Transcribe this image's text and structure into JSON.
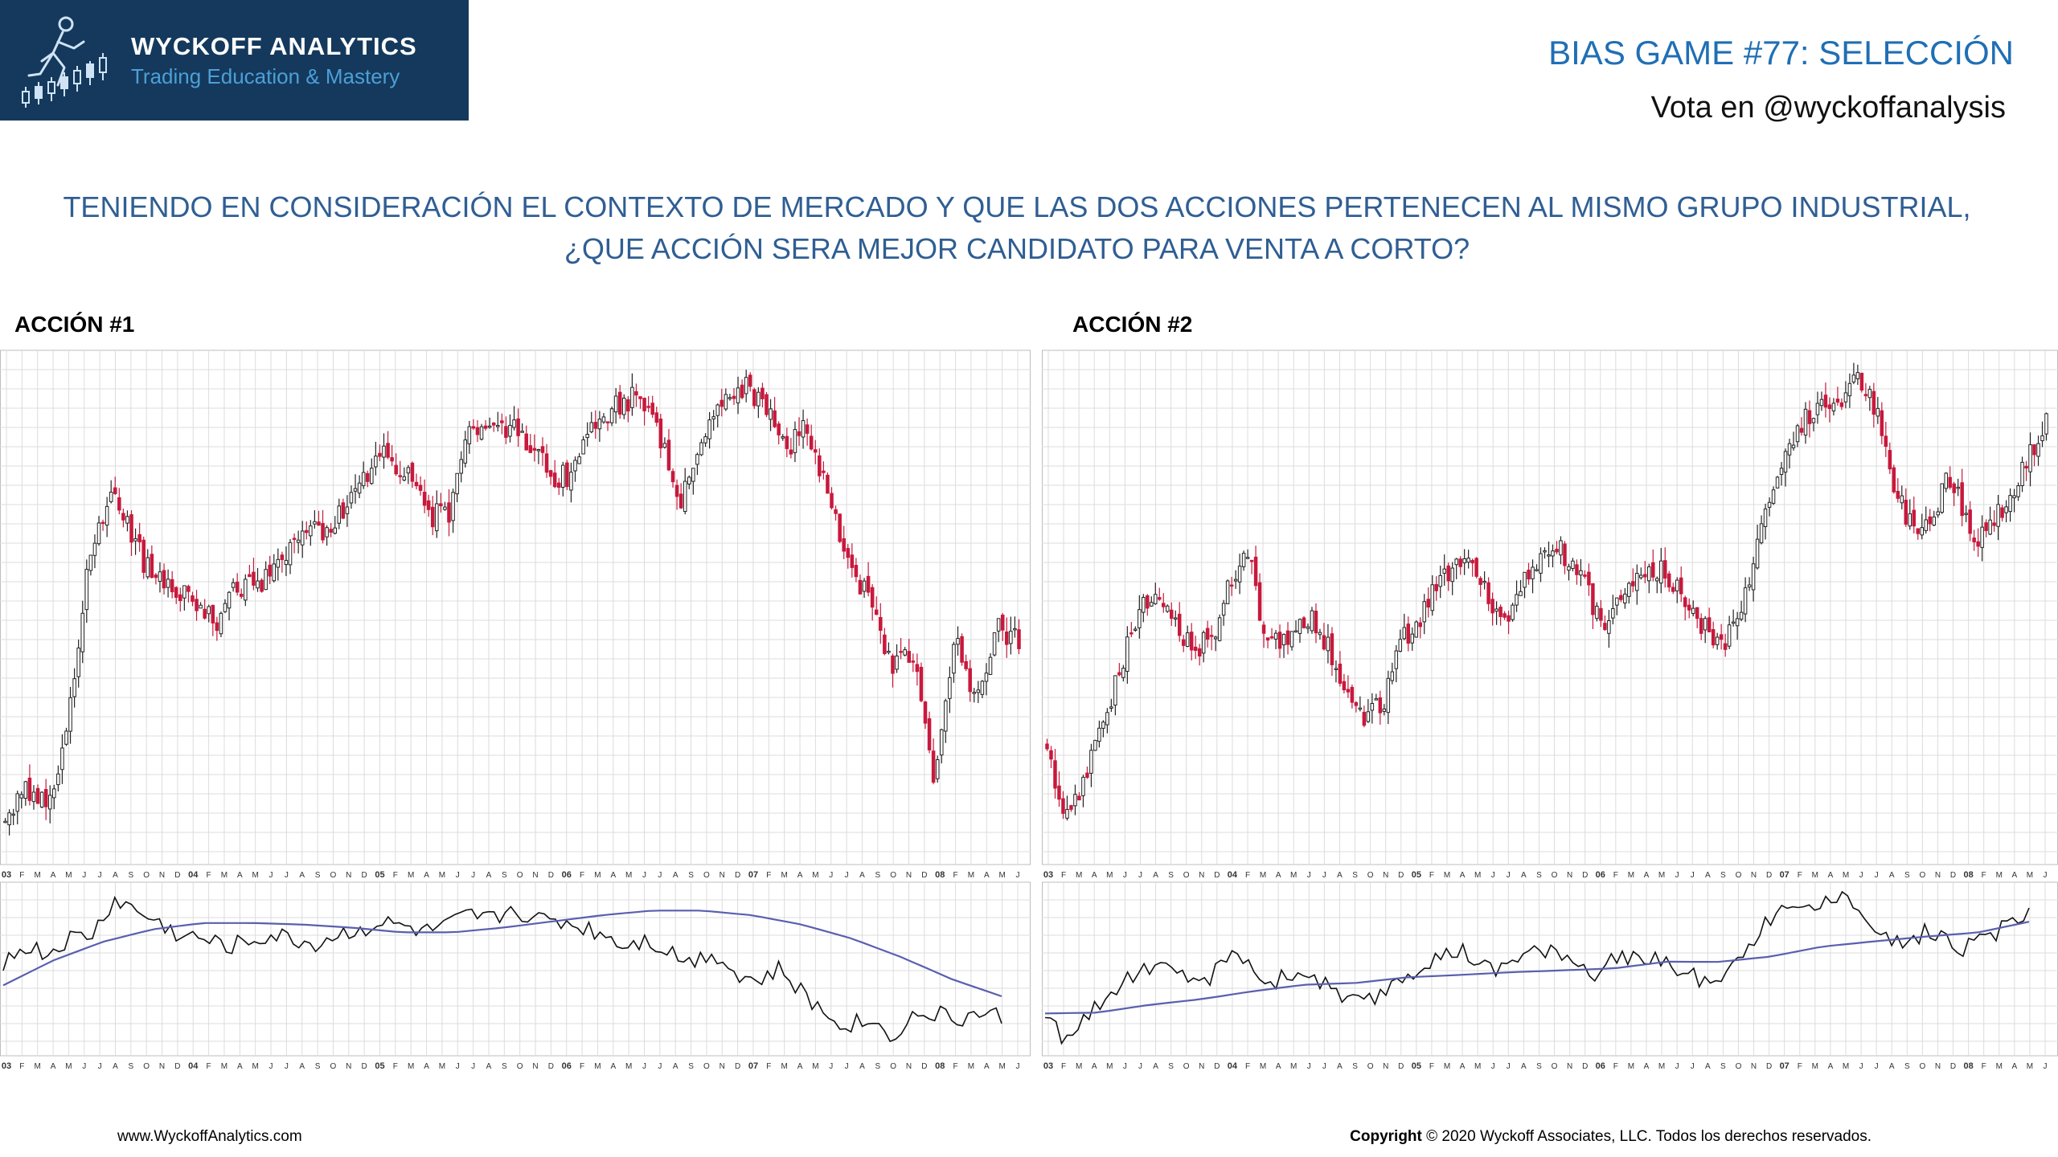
{
  "brand": {
    "name": "WYCKOFF ANALYTICS",
    "tagline": "Trading Education & Mastery",
    "logo_icon": "runner-candlestick-logo",
    "background": "#14395c"
  },
  "header": {
    "title": "BIAS GAME #77: SELECCIÓN",
    "vote": "Vota en @wyckoffanalysis"
  },
  "question": {
    "line1": "TENIENDO EN CONSIDERACIÓN EL CONTEXTO DE MERCADO Y QUE LAS DOS ACCIONES PERTENECEN AL MISMO GRUPO INDUSTRIAL,",
    "line2": "¿QUE ACCIÓN SERA MEJOR CANDIDATO PARA VENTA A CORTO?"
  },
  "footer": {
    "website": "www.WyckoffAnalytics.com",
    "copyright_label": "Copyright",
    "copyright_text": "© 2020 Wyckoff Associates, LLC. Todos los derechos reservados."
  },
  "colors": {
    "up_candle": "#222222",
    "down_candle": "#c8193c",
    "relative_strength": "#111111",
    "moving_average": "#5a5fae",
    "grid": "#dcdcdc"
  },
  "chart_data": [
    {
      "type": "candlestick",
      "label": "ACCIÓN #1",
      "x_ticks": [
        "03",
        "F",
        "M",
        "A",
        "M",
        "J",
        "J",
        "A",
        "S",
        "O",
        "N",
        "D",
        "04",
        "F",
        "M",
        "A",
        "M",
        "J",
        "J",
        "A",
        "S",
        "O",
        "N",
        "D",
        "05",
        "F",
        "M",
        "A",
        "M",
        "J",
        "J",
        "A",
        "S",
        "O",
        "N",
        "D",
        "06",
        "F",
        "M",
        "A",
        "M",
        "J",
        "J",
        "A",
        "S",
        "O",
        "N",
        "D",
        "07",
        "F",
        "M",
        "A",
        "M",
        "J",
        "J",
        "A",
        "S",
        "O",
        "N",
        "D",
        "08",
        "F",
        "M",
        "A",
        "M",
        "J"
      ],
      "price_path": [
        0.07,
        0.14,
        0.09,
        0.28,
        0.62,
        0.73,
        0.65,
        0.56,
        0.54,
        0.52,
        0.48,
        0.55,
        0.55,
        0.6,
        0.66,
        0.66,
        0.7,
        0.76,
        0.82,
        0.78,
        0.69,
        0.7,
        0.87,
        0.9,
        0.87,
        0.83,
        0.76,
        0.79,
        0.89,
        0.92,
        0.94,
        0.85,
        0.72,
        0.85,
        0.92,
        0.96,
        0.91,
        0.83,
        0.88,
        0.72,
        0.61,
        0.5,
        0.39,
        0.4,
        0.15,
        0.44,
        0.3,
        0.47,
        0.43
      ],
      "ma_path": [
        0.4,
        0.56,
        0.68,
        0.76,
        0.8,
        0.8,
        0.79,
        0.77,
        0.74,
        0.74,
        0.77,
        0.81,
        0.85,
        0.88,
        0.88,
        0.85,
        0.79,
        0.7,
        0.58,
        0.44,
        0.33
      ],
      "rs_path": [
        0.55,
        0.65,
        0.6,
        0.7,
        0.72,
        0.95,
        0.88,
        0.8,
        0.72,
        0.7,
        0.65,
        0.68,
        0.72,
        0.7,
        0.66,
        0.72,
        0.76,
        0.8,
        0.78,
        0.74,
        0.78,
        0.85,
        0.82,
        0.9,
        0.82,
        0.82,
        0.78,
        0.74,
        0.66,
        0.7,
        0.62,
        0.55,
        0.62,
        0.48,
        0.42,
        0.5,
        0.35,
        0.22,
        0.15,
        0.18,
        0.08,
        0.2,
        0.22,
        0.18,
        0.22,
        0.2
      ]
    },
    {
      "type": "candlestick",
      "label": "ACCIÓN #2",
      "x_ticks": [
        "03",
        "F",
        "M",
        "A",
        "M",
        "J",
        "J",
        "A",
        "S",
        "O",
        "N",
        "D",
        "04",
        "F",
        "M",
        "A",
        "M",
        "J",
        "J",
        "A",
        "S",
        "O",
        "N",
        "D",
        "05",
        "F",
        "M",
        "A",
        "M",
        "J",
        "J",
        "A",
        "S",
        "O",
        "N",
        "D",
        "06",
        "F",
        "M",
        "A",
        "M",
        "J",
        "J",
        "A",
        "S",
        "O",
        "N",
        "D",
        "07",
        "F",
        "M",
        "A",
        "M",
        "J",
        "J",
        "A",
        "S",
        "O",
        "N",
        "D",
        "08",
        "F",
        "M",
        "A",
        "M",
        "J"
      ],
      "price_path": [
        0.22,
        0.06,
        0.14,
        0.24,
        0.34,
        0.46,
        0.52,
        0.5,
        0.45,
        0.43,
        0.46,
        0.58,
        0.6,
        0.42,
        0.44,
        0.48,
        0.47,
        0.39,
        0.3,
        0.28,
        0.32,
        0.44,
        0.48,
        0.55,
        0.58,
        0.61,
        0.52,
        0.47,
        0.55,
        0.6,
        0.63,
        0.6,
        0.53,
        0.46,
        0.55,
        0.58,
        0.59,
        0.55,
        0.51,
        0.45,
        0.44,
        0.5,
        0.66,
        0.76,
        0.86,
        0.9,
        0.92,
        0.94,
        0.98,
        0.9,
        0.75,
        0.68,
        0.66,
        0.76,
        0.72,
        0.64,
        0.7,
        0.73,
        0.82,
        0.88
      ]
    }
  ]
}
